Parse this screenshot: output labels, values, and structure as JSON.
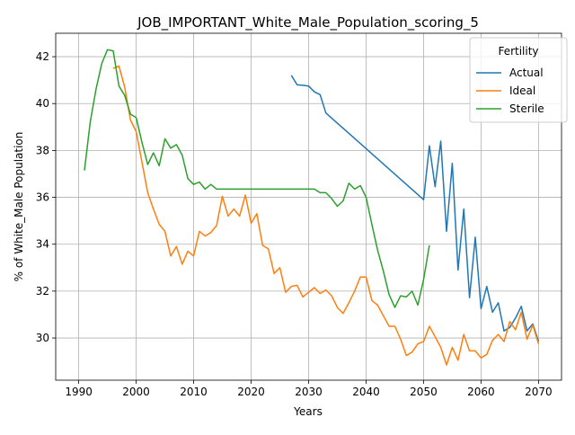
{
  "chart_data": {
    "type": "line",
    "title": "JOB_IMPORTANT_White_Male_Population_scoring_5",
    "xlabel": "Years",
    "ylabel": "% of White_Male Population",
    "xlim": [
      1986,
      2074
    ],
    "ylim": [
      28.2,
      43.0
    ],
    "xticks": [
      1990,
      2000,
      2010,
      2020,
      2030,
      2040,
      2050,
      2060,
      2070
    ],
    "yticks": [
      30,
      32,
      34,
      36,
      38,
      40,
      42
    ],
    "grid": true,
    "legend": {
      "title": "Fertility",
      "position": "top-right"
    },
    "series": [
      {
        "name": "Actual",
        "color": "#1f77b4",
        "x": [
          2027,
          2028,
          2029,
          2030,
          2031,
          2032,
          2033,
          2050,
          2051,
          2052,
          2053,
          2054,
          2055,
          2056,
          2057,
          2058,
          2059,
          2060,
          2061,
          2062,
          2063,
          2064,
          2065,
          2066,
          2067,
          2068,
          2069,
          2070
        ],
        "y": [
          41.2,
          40.8,
          40.78,
          40.75,
          40.5,
          40.38,
          39.6,
          35.9,
          38.2,
          36.45,
          38.4,
          34.55,
          37.45,
          32.9,
          35.5,
          31.72,
          34.3,
          31.25,
          32.2,
          31.1,
          31.5,
          30.3,
          30.45,
          30.85,
          31.35,
          30.3,
          30.6,
          29.85
        ]
      },
      {
        "name": "Ideal",
        "color": "#ff7f0e",
        "x": [
          1996,
          1997,
          1998,
          1999,
          2000,
          2001,
          2002,
          2003,
          2004,
          2005,
          2006,
          2007,
          2008,
          2009,
          2010,
          2011,
          2012,
          2013,
          2014,
          2015,
          2016,
          2017,
          2018,
          2019,
          2020,
          2021,
          2022,
          2023,
          2024,
          2025,
          2026,
          2027,
          2028,
          2029,
          2030,
          2031,
          2032,
          2033,
          2034,
          2035,
          2036,
          2037,
          2038,
          2039,
          2040,
          2041,
          2042,
          2043,
          2044,
          2045,
          2046,
          2047,
          2048,
          2049,
          2050,
          2051,
          2052,
          2053,
          2054,
          2055,
          2056,
          2057,
          2058,
          2059,
          2060,
          2061,
          2062,
          2063,
          2064,
          2065,
          2066,
          2067,
          2068,
          2069,
          2070
        ],
        "y": [
          41.5,
          41.6,
          40.7,
          39.3,
          38.8,
          37.5,
          36.2,
          35.5,
          34.85,
          34.55,
          33.5,
          33.9,
          33.15,
          33.7,
          33.5,
          34.55,
          34.35,
          34.5,
          34.8,
          36.05,
          35.2,
          35.5,
          35.2,
          36.1,
          34.9,
          35.3,
          33.95,
          33.8,
          32.75,
          33.0,
          31.95,
          32.2,
          32.25,
          31.75,
          31.95,
          32.15,
          31.9,
          32.05,
          31.8,
          31.3,
          31.05,
          31.5,
          32.0,
          32.6,
          32.6,
          31.6,
          31.4,
          30.95,
          30.5,
          30.5,
          29.95,
          29.25,
          29.4,
          29.75,
          29.85,
          30.5,
          30.05,
          29.6,
          28.85,
          29.6,
          29.05,
          30.15,
          29.45,
          29.45,
          29.15,
          29.3,
          29.9,
          30.15,
          29.85,
          30.7,
          30.35,
          31.1,
          29.95,
          30.55,
          29.75
        ]
      },
      {
        "name": "Sterile",
        "color": "#2ca02c",
        "x": [
          1991,
          1992,
          1993,
          1994,
          1995,
          1996,
          1997,
          1998,
          1999,
          2000,
          2001,
          2002,
          2003,
          2004,
          2005,
          2006,
          2007,
          2008,
          2009,
          2010,
          2011,
          2012,
          2013,
          2014,
          2015,
          2020,
          2025,
          2030,
          2031,
          2032,
          2033,
          2034,
          2035,
          2036,
          2037,
          2038,
          2039,
          2040,
          2041,
          2042,
          2043,
          2044,
          2045,
          2046,
          2047,
          2048,
          2049,
          2050,
          2051
        ],
        "y": [
          37.15,
          39.2,
          40.6,
          41.7,
          42.3,
          42.25,
          40.75,
          40.35,
          39.55,
          39.4,
          38.35,
          37.4,
          37.9,
          37.35,
          38.5,
          38.1,
          38.25,
          37.8,
          36.8,
          36.55,
          36.65,
          36.35,
          36.55,
          36.35,
          36.35,
          36.35,
          36.35,
          36.35,
          36.35,
          36.2,
          36.2,
          35.95,
          35.62,
          35.85,
          36.6,
          36.35,
          36.5,
          36.0,
          34.85,
          33.75,
          32.85,
          31.85,
          31.3,
          31.8,
          31.75,
          32.0,
          31.4,
          32.5,
          33.95
        ]
      }
    ]
  }
}
